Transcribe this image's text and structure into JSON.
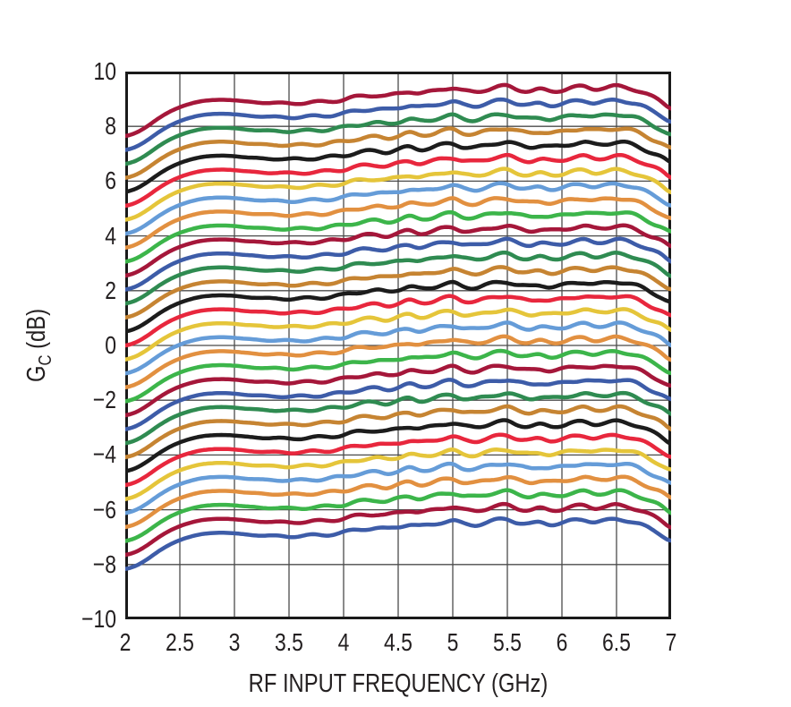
{
  "figure": {
    "background": "#ffffff",
    "text_color": "#231f20",
    "grid_color": "#4b4b4b",
    "frame_color": "#1a1a1a"
  },
  "chart_data": {
    "type": "line",
    "title": "",
    "xlabel": "RF INPUT FREQUENCY (GHz)",
    "ylabel": {
      "main": "G",
      "sub": "C",
      "unit": "(dB)"
    },
    "xlim": [
      2,
      7
    ],
    "ylim": [
      -10,
      10
    ],
    "grid": true,
    "x_ticks": [
      "2",
      "2.5",
      "3",
      "3.5",
      "4",
      "4.5",
      "5",
      "5.5",
      "6",
      "6.5",
      "7"
    ],
    "x_tick_values": [
      2,
      2.5,
      3,
      3.5,
      4,
      4.5,
      5,
      5.5,
      6,
      6.5,
      7
    ],
    "y_ticks": [
      "10",
      "8",
      "6",
      "4",
      "2",
      "0",
      "−2",
      "−4",
      "−6",
      "−8",
      "−10"
    ],
    "y_tick_values": [
      10,
      8,
      6,
      4,
      2,
      0,
      -2,
      -4,
      -6,
      -8,
      -10
    ],
    "series_description": "32 gain-control curves stepped ~0.5 dB apart; identical frequency response shape, repeating 10-color cycle",
    "num_curves": 32,
    "offset_step_db": -0.51,
    "line_width": 4.5,
    "colors": [
      "#a5173a",
      "#3d5ca8",
      "#2f8b51",
      "#c68432",
      "#1c1c1c",
      "#e8273d",
      "#e5c53a",
      "#659cd8",
      "#e29040",
      "#3cb54a"
    ],
    "base_x": [
      2.0,
      2.1,
      2.2,
      2.3,
      2.4,
      2.5,
      2.6,
      2.7,
      2.8,
      2.9,
      3.0,
      3.1,
      3.2,
      3.3,
      3.4,
      3.5,
      3.6,
      3.7,
      3.8,
      3.9,
      4.0,
      4.1,
      4.2,
      4.3,
      4.4,
      4.5,
      4.6,
      4.7,
      4.8,
      4.9,
      5.0,
      5.1,
      5.2,
      5.3,
      5.4,
      5.5,
      5.6,
      5.7,
      5.8,
      5.9,
      6.0,
      6.1,
      6.2,
      6.3,
      6.4,
      6.5,
      6.6,
      6.7,
      6.8,
      6.9,
      7.0
    ],
    "base_y": [
      7.65,
      7.77,
      8.0,
      8.28,
      8.52,
      8.7,
      8.83,
      8.92,
      8.96,
      8.97,
      8.95,
      8.91,
      8.88,
      8.86,
      8.85,
      8.84,
      8.85,
      8.87,
      8.89,
      8.93,
      8.98,
      9.06,
      9.12,
      9.14,
      9.11,
      9.19,
      9.28,
      9.21,
      9.26,
      9.36,
      9.41,
      9.29,
      9.26,
      9.34,
      9.43,
      9.46,
      9.35,
      9.29,
      9.34,
      9.29,
      9.33,
      9.41,
      9.45,
      9.38,
      9.41,
      9.46,
      9.42,
      9.3,
      9.12,
      8.93,
      8.7
    ],
    "wiggle": {
      "amplitude": 0.05,
      "period_ghz": 0.34,
      "phase_step_rad": 1.05,
      "ramp_start_x": 3.0,
      "ramp_end_x": 3.8
    }
  }
}
